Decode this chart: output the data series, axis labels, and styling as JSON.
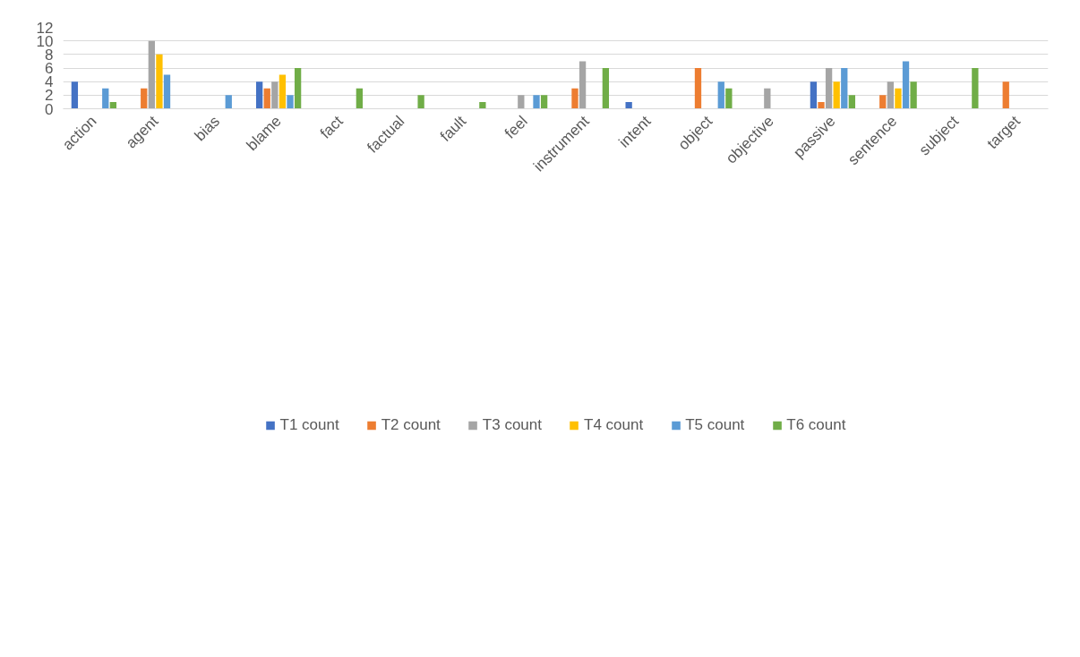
{
  "chart_data": {
    "type": "bar",
    "categories": [
      "action",
      "agent",
      "bias",
      "blame",
      "fact",
      "factual",
      "fault",
      "feel",
      "instrument",
      "intent",
      "object",
      "objective",
      "passive",
      "sentence",
      "subject",
      "target"
    ],
    "series": [
      {
        "name": "T1 count",
        "color": "#4472c4",
        "values": [
          4,
          0,
          0,
          4,
          0,
          0,
          0,
          0,
          0,
          1,
          0,
          0,
          4,
          0,
          0,
          0
        ]
      },
      {
        "name": "T2 count",
        "color": "#ed7d31",
        "values": [
          0,
          3,
          0,
          3,
          0,
          0,
          0,
          0,
          3,
          0,
          6,
          0,
          1,
          2,
          0,
          4
        ]
      },
      {
        "name": "T3 count",
        "color": "#a5a5a5",
        "values": [
          0,
          10,
          0,
          4,
          0,
          0,
          0,
          2,
          7,
          0,
          0,
          3,
          6,
          4,
          0,
          0
        ]
      },
      {
        "name": "T4 count",
        "color": "#ffc000",
        "values": [
          0,
          8,
          0,
          5,
          0,
          0,
          0,
          0,
          0,
          0,
          0,
          0,
          4,
          3,
          0,
          0
        ]
      },
      {
        "name": "T5 count",
        "color": "#5b9bd5",
        "values": [
          3,
          5,
          2,
          2,
          0,
          0,
          0,
          2,
          0,
          0,
          4,
          0,
          6,
          7,
          0,
          0
        ]
      },
      {
        "name": "T6 count",
        "color": "#70ad47",
        "values": [
          1,
          0,
          0,
          6,
          3,
          2,
          1,
          2,
          6,
          0,
          3,
          0,
          2,
          4,
          6,
          0
        ]
      }
    ],
    "ylim": [
      0,
      12
    ],
    "yticks": [
      0,
      2,
      4,
      6,
      8,
      10,
      12
    ],
    "grid": "y",
    "legend": "bottom"
  }
}
